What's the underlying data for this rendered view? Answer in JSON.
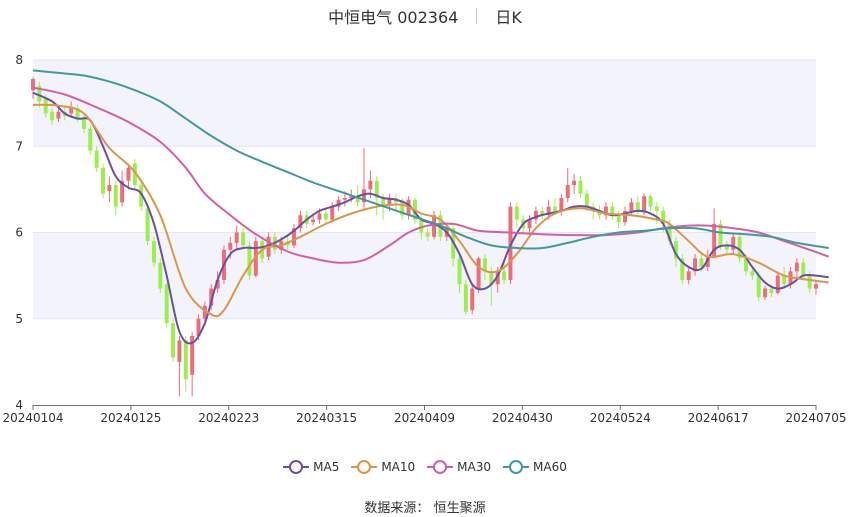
{
  "header": {
    "title": "中恒电气 002364",
    "period": "日K"
  },
  "source": {
    "label": "数据来源：",
    "name": "恒生聚源"
  },
  "colors": {
    "up": "#ef6b78",
    "down": "#9bef4c",
    "ma5": "#6a4ea8",
    "ma10": "#dc9648",
    "ma30": "#d45fa4",
    "ma60": "#3f9a9e",
    "band": "#f3f4fb",
    "grid": "#e3e6f2"
  },
  "chart_data": {
    "type": "candlestick",
    "y_ticks": [
      "4",
      "5",
      "6",
      "7",
      "8"
    ],
    "ylim": [
      4,
      8
    ],
    "x_ticks": [
      "20240104",
      "20240125",
      "20240223",
      "20240315",
      "20240409",
      "20240430",
      "20240524",
      "20240617",
      "20240705"
    ],
    "legend": [
      "MA5",
      "MA10",
      "MA30",
      "MA60"
    ],
    "candles": [
      [
        7.65,
        7.78,
        7.8,
        7.55
      ],
      [
        7.7,
        7.52,
        7.75,
        7.45
      ],
      [
        7.55,
        7.38,
        7.6,
        7.33
      ],
      [
        7.4,
        7.3,
        7.45,
        7.25
      ],
      [
        7.32,
        7.4,
        7.46,
        7.28
      ],
      [
        7.4,
        7.35,
        7.48,
        7.3
      ],
      [
        7.38,
        7.45,
        7.52,
        7.33
      ],
      [
        7.44,
        7.32,
        7.48,
        7.28
      ],
      [
        7.33,
        7.2,
        7.38,
        7.15
      ],
      [
        7.2,
        6.95,
        7.25,
        6.9
      ],
      [
        6.95,
        6.75,
        7.0,
        6.7
      ],
      [
        6.75,
        6.45,
        6.8,
        6.4
      ],
      [
        6.48,
        6.55,
        6.65,
        6.35
      ],
      [
        6.55,
        6.3,
        6.6,
        6.2
      ],
      [
        6.35,
        6.6,
        6.72,
        6.3
      ],
      [
        6.6,
        6.75,
        6.8,
        6.5
      ],
      [
        6.8,
        6.55,
        6.85,
        6.5
      ],
      [
        6.55,
        6.3,
        6.62,
        6.25
      ],
      [
        6.28,
        5.9,
        6.32,
        5.85
      ],
      [
        5.9,
        5.65,
        5.95,
        5.6
      ],
      [
        5.65,
        5.35,
        5.7,
        5.3
      ],
      [
        5.4,
        4.95,
        5.42,
        4.9
      ],
      [
        4.95,
        4.55,
        5.0,
        4.5
      ],
      [
        4.5,
        4.75,
        4.8,
        4.1
      ],
      [
        4.75,
        4.3,
        4.8,
        4.15
      ],
      [
        4.35,
        4.8,
        4.85,
        4.1
      ],
      [
        4.8,
        5.0,
        5.05,
        4.75
      ],
      [
        5.0,
        5.15,
        5.2,
        4.92
      ],
      [
        5.15,
        5.35,
        5.4,
        5.1
      ],
      [
        5.35,
        5.45,
        5.55,
        5.3
      ],
      [
        5.45,
        5.8,
        5.85,
        5.4
      ],
      [
        5.8,
        5.88,
        5.95,
        5.7
      ],
      [
        5.88,
        6.0,
        6.08,
        5.8
      ],
      [
        6.0,
        5.85,
        6.05,
        5.8
      ],
      [
        5.85,
        5.5,
        5.9,
        5.45
      ],
      [
        5.5,
        5.9,
        5.95,
        5.48
      ],
      [
        5.9,
        5.7,
        5.95,
        5.65
      ],
      [
        5.72,
        5.95,
        6.0,
        5.68
      ],
      [
        5.95,
        5.8,
        6.0,
        5.75
      ],
      [
        5.8,
        5.9,
        5.95,
        5.75
      ],
      [
        5.9,
        5.85,
        5.95,
        5.8
      ],
      [
        5.85,
        6.05,
        6.1,
        5.82
      ],
      [
        6.05,
        6.2,
        6.25,
        6.0
      ],
      [
        6.2,
        6.1,
        6.25,
        6.05
      ],
      [
        6.12,
        6.15,
        6.22,
        6.08
      ],
      [
        6.15,
        6.22,
        6.28,
        6.1
      ],
      [
        6.22,
        6.15,
        6.28,
        6.1
      ],
      [
        6.15,
        6.3,
        6.35,
        6.12
      ],
      [
        6.3,
        6.38,
        6.42,
        6.25
      ],
      [
        6.38,
        6.4,
        6.48,
        6.3
      ],
      [
        6.4,
        6.42,
        6.5,
        6.35
      ],
      [
        6.42,
        6.35,
        6.55,
        6.3
      ],
      [
        6.35,
        6.5,
        6.98,
        6.25
      ],
      [
        6.5,
        6.6,
        6.72,
        6.4
      ],
      [
        6.6,
        6.4,
        6.65,
        6.2
      ],
      [
        6.4,
        6.3,
        6.45,
        6.15
      ],
      [
        6.32,
        6.4,
        6.45,
        6.25
      ],
      [
        6.4,
        6.35,
        6.45,
        6.25
      ],
      [
        6.35,
        6.2,
        6.4,
        6.15
      ],
      [
        6.2,
        6.38,
        6.42,
        6.15
      ],
      [
        6.38,
        6.15,
        6.4,
        6.1
      ],
      [
        6.15,
        6.0,
        6.2,
        5.92
      ],
      [
        6.0,
        5.95,
        6.05,
        5.9
      ],
      [
        5.95,
        6.2,
        6.25,
        5.92
      ],
      [
        6.2,
        5.95,
        6.25,
        5.9
      ],
      [
        5.95,
        6.05,
        6.1,
        5.9
      ],
      [
        6.05,
        5.7,
        6.1,
        5.6
      ],
      [
        5.7,
        5.4,
        5.75,
        5.3
      ],
      [
        5.4,
        5.08,
        5.45,
        5.05
      ],
      [
        5.1,
        5.35,
        5.4,
        5.05
      ],
      [
        5.35,
        5.7,
        5.72,
        5.3
      ],
      [
        5.7,
        5.55,
        5.75,
        5.45
      ],
      [
        5.55,
        5.4,
        5.6,
        5.15
      ],
      [
        5.4,
        5.55,
        5.6,
        5.3
      ],
      [
        5.55,
        5.45,
        5.65,
        5.4
      ],
      [
        5.45,
        6.3,
        6.35,
        5.4
      ],
      [
        6.3,
        6.15,
        6.35,
        6.05
      ],
      [
        6.15,
        6.05,
        6.2,
        6.0
      ],
      [
        6.05,
        6.15,
        6.2,
        6.0
      ],
      [
        6.15,
        6.25,
        6.3,
        6.1
      ],
      [
        6.25,
        6.2,
        6.3,
        6.15
      ],
      [
        6.2,
        6.3,
        6.38,
        6.15
      ],
      [
        6.3,
        6.25,
        6.4,
        6.2
      ],
      [
        6.25,
        6.4,
        6.45,
        6.2
      ],
      [
        6.4,
        6.55,
        6.75,
        6.35
      ],
      [
        6.55,
        6.6,
        6.68,
        6.45
      ],
      [
        6.6,
        6.45,
        6.65,
        6.4
      ],
      [
        6.45,
        6.3,
        6.5,
        6.25
      ],
      [
        6.3,
        6.25,
        6.35,
        6.15
      ],
      [
        6.25,
        6.2,
        6.32,
        6.15
      ],
      [
        6.2,
        6.3,
        6.35,
        6.15
      ],
      [
        6.3,
        6.2,
        6.35,
        6.15
      ],
      [
        6.2,
        6.12,
        6.25,
        6.05
      ],
      [
        6.12,
        6.25,
        6.3,
        6.08
      ],
      [
        6.25,
        6.35,
        6.4,
        6.2
      ],
      [
        6.35,
        6.25,
        6.42,
        6.2
      ],
      [
        6.25,
        6.42,
        6.45,
        6.2
      ],
      [
        6.42,
        6.3,
        6.45,
        6.25
      ],
      [
        6.3,
        6.25,
        6.35,
        6.1
      ],
      [
        6.25,
        6.1,
        6.3,
        6.0
      ],
      [
        6.1,
        5.9,
        6.15,
        5.85
      ],
      [
        5.9,
        5.7,
        5.95,
        5.6
      ],
      [
        5.7,
        5.45,
        5.75,
        5.4
      ],
      [
        5.45,
        5.55,
        5.6,
        5.4
      ],
      [
        5.55,
        5.7,
        5.75,
        5.5
      ],
      [
        5.7,
        5.6,
        5.78,
        5.55
      ],
      [
        5.6,
        5.72,
        5.8,
        5.55
      ],
      [
        5.72,
        6.1,
        6.28,
        5.7
      ],
      [
        6.1,
        5.85,
        6.15,
        5.8
      ],
      [
        5.85,
        5.8,
        5.9,
        5.75
      ],
      [
        5.8,
        5.95,
        6.0,
        5.75
      ],
      [
        5.95,
        5.7,
        6.0,
        5.65
      ],
      [
        5.7,
        5.55,
        5.75,
        5.5
      ],
      [
        5.55,
        5.5,
        5.6,
        5.45
      ],
      [
        5.5,
        5.25,
        5.55,
        5.2
      ],
      [
        5.25,
        5.35,
        5.38,
        5.22
      ],
      [
        5.35,
        5.3,
        5.4,
        5.25
      ],
      [
        5.3,
        5.5,
        5.55,
        5.28
      ],
      [
        5.5,
        5.4,
        5.6,
        5.35
      ],
      [
        5.4,
        5.55,
        5.6,
        5.35
      ],
      [
        5.55,
        5.65,
        5.7,
        5.45
      ],
      [
        5.65,
        5.5,
        5.7,
        5.45
      ],
      [
        5.5,
        5.35,
        5.55,
        5.3
      ],
      [
        5.35,
        5.4,
        5.45,
        5.28
      ]
    ],
    "ma": {
      "MA5": [
        [
          0,
          7.62
        ],
        [
          3,
          7.52
        ],
        [
          5,
          7.38
        ],
        [
          7,
          7.32
        ],
        [
          9,
          7.3
        ],
        [
          11,
          7.0
        ],
        [
          13,
          6.65
        ],
        [
          15,
          6.52
        ],
        [
          17,
          6.45
        ],
        [
          19,
          6.1
        ],
        [
          21,
          5.5
        ],
        [
          23,
          4.85
        ],
        [
          25,
          4.72
        ],
        [
          27,
          4.95
        ],
        [
          29,
          5.45
        ],
        [
          31,
          5.75
        ],
        [
          33,
          5.82
        ],
        [
          35,
          5.82
        ],
        [
          37,
          5.85
        ],
        [
          39,
          5.92
        ],
        [
          41,
          6.02
        ],
        [
          43,
          6.15
        ],
        [
          45,
          6.25
        ],
        [
          47,
          6.3
        ],
        [
          49,
          6.35
        ],
        [
          51,
          6.42
        ],
        [
          53,
          6.45
        ],
        [
          55,
          6.4
        ],
        [
          57,
          6.38
        ],
        [
          59,
          6.32
        ],
        [
          61,
          6.15
        ],
        [
          63,
          6.1
        ],
        [
          65,
          6.0
        ],
        [
          67,
          5.75
        ],
        [
          69,
          5.4
        ],
        [
          71,
          5.35
        ],
        [
          73,
          5.5
        ],
        [
          75,
          5.85
        ],
        [
          77,
          6.1
        ],
        [
          79,
          6.18
        ],
        [
          81,
          6.22
        ],
        [
          83,
          6.25
        ],
        [
          85,
          6.3
        ],
        [
          87,
          6.3
        ],
        [
          89,
          6.25
        ],
        [
          91,
          6.2
        ],
        [
          93,
          6.22
        ],
        [
          95,
          6.25
        ],
        [
          97,
          6.22
        ],
        [
          99,
          6.1
        ],
        [
          101,
          5.75
        ],
        [
          103,
          5.6
        ],
        [
          105,
          5.58
        ],
        [
          107,
          5.8
        ],
        [
          109,
          5.85
        ],
        [
          111,
          5.8
        ],
        [
          113,
          5.6
        ],
        [
          115,
          5.42
        ],
        [
          117,
          5.35
        ],
        [
          119,
          5.4
        ],
        [
          121,
          5.5
        ],
        [
          123,
          5.5
        ],
        [
          125,
          5.48
        ]
      ],
      "MA10": [
        [
          0,
          7.48
        ],
        [
          4,
          7.47
        ],
        [
          8,
          7.38
        ],
        [
          12,
          6.98
        ],
        [
          16,
          6.7
        ],
        [
          20,
          6.2
        ],
        [
          24,
          5.35
        ],
        [
          28,
          5.05
        ],
        [
          30,
          5.1
        ],
        [
          33,
          5.5
        ],
        [
          36,
          5.8
        ],
        [
          39,
          5.85
        ],
        [
          42,
          5.95
        ],
        [
          46,
          6.1
        ],
        [
          50,
          6.22
        ],
        [
          54,
          6.3
        ],
        [
          58,
          6.32
        ],
        [
          61,
          6.22
        ],
        [
          64,
          6.15
        ],
        [
          67,
          5.9
        ],
        [
          70,
          5.6
        ],
        [
          73,
          5.55
        ],
        [
          76,
          5.75
        ],
        [
          79,
          6.05
        ],
        [
          82,
          6.22
        ],
        [
          86,
          6.28
        ],
        [
          90,
          6.22
        ],
        [
          94,
          6.2
        ],
        [
          98,
          6.15
        ],
        [
          100,
          6.1
        ],
        [
          103,
          5.9
        ],
        [
          106,
          5.72
        ],
        [
          110,
          5.75
        ],
        [
          114,
          5.65
        ],
        [
          118,
          5.5
        ],
        [
          122,
          5.45
        ],
        [
          125,
          5.42
        ]
      ],
      "MA30": [
        [
          0,
          7.68
        ],
        [
          5,
          7.6
        ],
        [
          10,
          7.45
        ],
        [
          15,
          7.28
        ],
        [
          20,
          7.05
        ],
        [
          24,
          6.75
        ],
        [
          27,
          6.45
        ],
        [
          31,
          6.2
        ],
        [
          35,
          5.98
        ],
        [
          40,
          5.78
        ],
        [
          44,
          5.7
        ],
        [
          48,
          5.65
        ],
        [
          52,
          5.68
        ],
        [
          56,
          5.85
        ],
        [
          59,
          6.0
        ],
        [
          62,
          6.08
        ],
        [
          66,
          6.1
        ],
        [
          70,
          6.02
        ],
        [
          75,
          6.0
        ],
        [
          80,
          5.98
        ],
        [
          85,
          5.97
        ],
        [
          90,
          5.97
        ],
        [
          95,
          6.0
        ],
        [
          99,
          6.05
        ],
        [
          103,
          6.08
        ],
        [
          106,
          6.08
        ],
        [
          110,
          6.05
        ],
        [
          114,
          6.0
        ],
        [
          118,
          5.9
        ],
        [
          122,
          5.8
        ],
        [
          125,
          5.72
        ]
      ],
      "MA60": [
        [
          0,
          7.88
        ],
        [
          4,
          7.85
        ],
        [
          8,
          7.82
        ],
        [
          12,
          7.75
        ],
        [
          16,
          7.65
        ],
        [
          20,
          7.52
        ],
        [
          24,
          7.32
        ],
        [
          28,
          7.12
        ],
        [
          32,
          6.95
        ],
        [
          36,
          6.82
        ],
        [
          40,
          6.7
        ],
        [
          44,
          6.58
        ],
        [
          48,
          6.48
        ],
        [
          52,
          6.38
        ],
        [
          56,
          6.28
        ],
        [
          60,
          6.18
        ],
        [
          64,
          6.08
        ],
        [
          68,
          5.95
        ],
        [
          72,
          5.85
        ],
        [
          76,
          5.82
        ],
        [
          80,
          5.82
        ],
        [
          84,
          5.88
        ],
        [
          88,
          5.95
        ],
        [
          92,
          6.0
        ],
        [
          96,
          6.02
        ],
        [
          100,
          6.05
        ],
        [
          104,
          6.05
        ],
        [
          108,
          6.0
        ],
        [
          112,
          5.98
        ],
        [
          116,
          5.95
        ],
        [
          120,
          5.88
        ],
        [
          125,
          5.82
        ]
      ]
    }
  }
}
